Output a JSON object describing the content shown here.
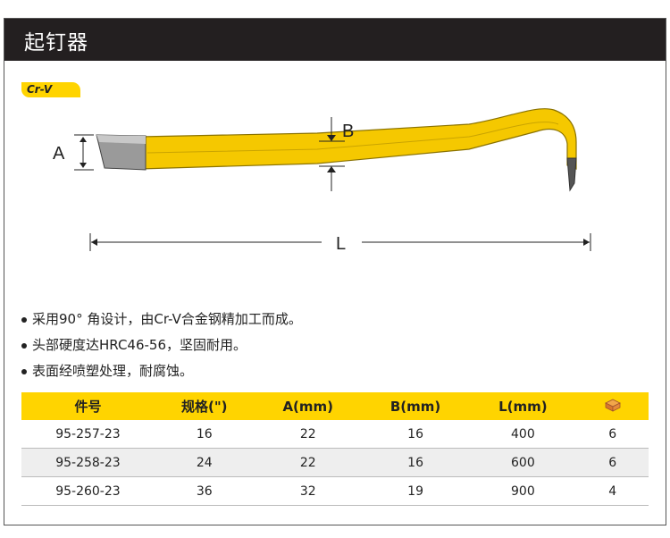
{
  "header": {
    "title": "起钉器"
  },
  "badge": {
    "label": "Cr-V"
  },
  "diagram": {
    "label_a": "A",
    "label_b": "B",
    "label_l": "L"
  },
  "features": [
    "采用90° 角设计，由Cr-V合金钢精加工而成。",
    "头部硬度达HRC46-56，坚固耐用。",
    "表面经喷塑处理，耐腐蚀。"
  ],
  "table": {
    "headers": [
      "件号",
      "规格(\")",
      "A(mm)",
      "B(mm)",
      "L(mm)"
    ],
    "package_icon": "package-box-icon",
    "rows": [
      [
        "95-257-23",
        "16",
        "22",
        "16",
        "400",
        "6"
      ],
      [
        "95-258-23",
        "24",
        "22",
        "16",
        "600",
        "6"
      ],
      [
        "95-260-23",
        "36",
        "32",
        "19",
        "900",
        "4"
      ]
    ]
  },
  "colors": {
    "header_bg": "#231f20",
    "accent": "#ffd400",
    "tool_yellow": "#f5c800"
  }
}
